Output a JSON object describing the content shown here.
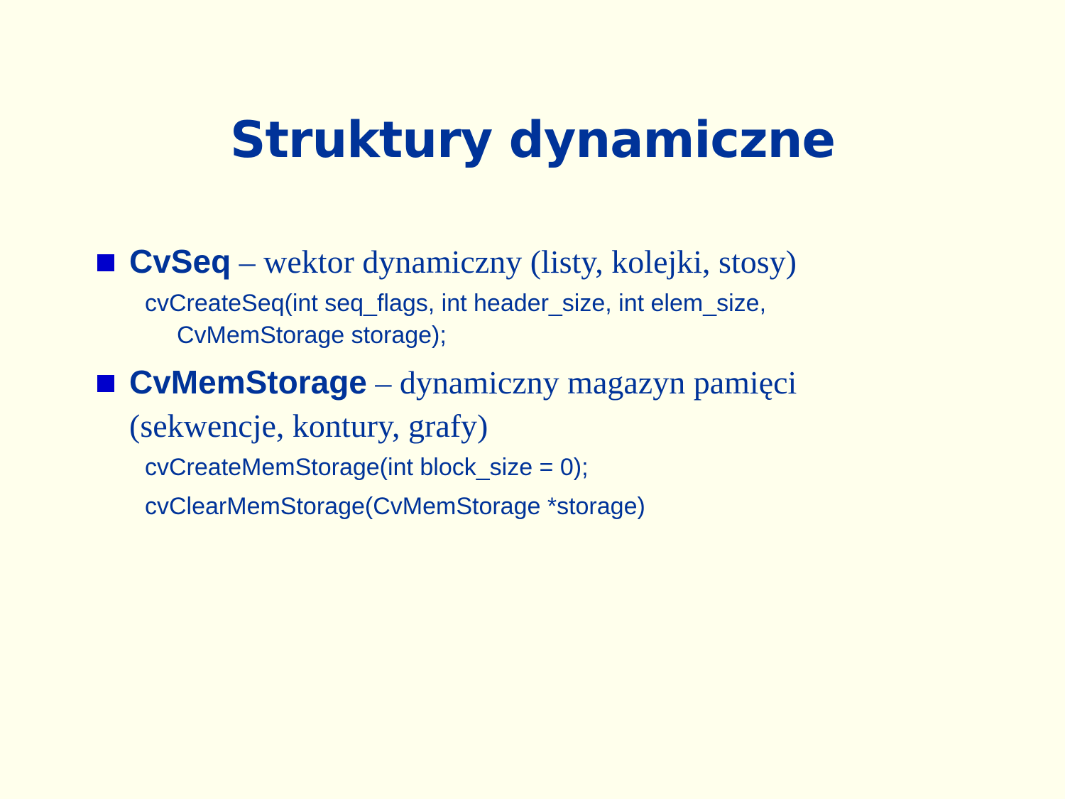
{
  "slide": {
    "title": "Struktury dynamiczne",
    "bullets": [
      {
        "term": "CvSeq",
        "description": " – wektor dynamiczny (listy, kolejki, stosy)",
        "code_lines": [
          "cvCreateSeq(int seq_flags, int header_size, int elem_size,",
          "CvMemStorage storage);"
        ]
      },
      {
        "term": "CvMemStorage",
        "description": " – dynamiczny magazyn pamięci",
        "description_continued": "(sekwencje, kontury, grafy)",
        "code_lines": [
          "cvCreateMemStorage(int block_size = 0);",
          "cvClearMemStorage(CvMemStorage *storage)"
        ]
      }
    ]
  },
  "colors": {
    "background": "#FFFFEC",
    "text": "#003399",
    "bullet_marker": "#0000CC"
  }
}
